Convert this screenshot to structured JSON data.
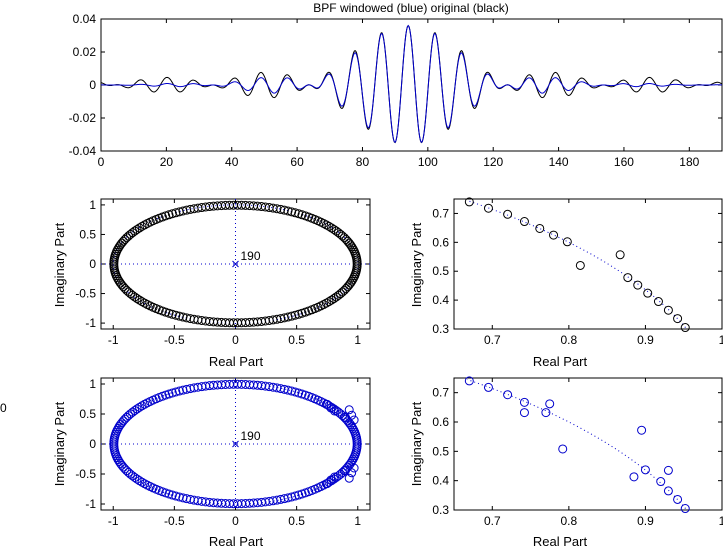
{
  "colors": {
    "original": "#000000",
    "windowed": "#0000cc",
    "axis": "#000000"
  },
  "stray_label": "0",
  "chart_data": [
    {
      "type": "line",
      "id": "impulse",
      "title": "BPF windowed (blue) original (black)",
      "xlim": [
        0,
        190
      ],
      "ylim": [
        -0.04,
        0.04
      ],
      "xticks": [
        0,
        20,
        40,
        60,
        80,
        100,
        120,
        140,
        160,
        180
      ],
      "yticks": [
        -0.04,
        -0.02,
        0,
        0.02,
        0.04
      ],
      "xtick_labels": [
        "0",
        "20",
        "40",
        "60",
        "80",
        "100",
        "120",
        "140",
        "160",
        "180"
      ],
      "ytick_labels": [
        "-0.04",
        "-0.02",
        "0",
        "0.02",
        "0.04"
      ],
      "center": 94,
      "period": 8.2,
      "series": [
        {
          "role": "original",
          "color": "#000000",
          "window": false
        },
        {
          "role": "windowed",
          "color": "#0000cc",
          "window": true
        }
      ]
    },
    {
      "type": "scatter",
      "id": "zeros-original",
      "xlabel": "Real Part",
      "ylabel": "Imaginary Part",
      "xlim": [
        -1.1,
        1.1
      ],
      "ylim": [
        -1.1,
        1.1
      ],
      "xticks": [
        -1,
        -0.5,
        0,
        0.5,
        1
      ],
      "yticks": [
        -1,
        -0.5,
        0,
        0.5,
        1
      ],
      "xtick_labels": [
        "-1",
        "-0.5",
        "0",
        "0.5",
        "1"
      ],
      "ytick_labels": [
        "-1",
        "-0.5",
        "0",
        "0.5",
        "1"
      ],
      "pole_label": "190",
      "color": "#000000",
      "n_zeros": 190,
      "dense_ring": true
    },
    {
      "type": "scatter",
      "id": "zeros-original-zoom",
      "xlabel": "Real Part",
      "ylabel": "Imaginary Part",
      "xlim": [
        0.65,
        1.0
      ],
      "ylim": [
        0.3,
        0.75
      ],
      "xticks": [
        0.7,
        0.8,
        0.9,
        1
      ],
      "yticks": [
        0.3,
        0.4,
        0.5,
        0.6,
        0.7
      ],
      "xtick_labels": [
        "0.7",
        "0.8",
        "0.9",
        "1"
      ],
      "ytick_labels": [
        "0.3",
        "0.4",
        "0.5",
        "0.6",
        "0.7"
      ],
      "color": "#000000",
      "points": [
        [
          0.67,
          0.74
        ],
        [
          0.695,
          0.718
        ],
        [
          0.72,
          0.697
        ],
        [
          0.742,
          0.672
        ],
        [
          0.762,
          0.648
        ],
        [
          0.78,
          0.625
        ],
        [
          0.798,
          0.602
        ],
        [
          0.815,
          0.52
        ],
        [
          0.867,
          0.557
        ],
        [
          0.877,
          0.478
        ],
        [
          0.89,
          0.452
        ],
        [
          0.903,
          0.424
        ],
        [
          0.917,
          0.395
        ],
        [
          0.93,
          0.365
        ],
        [
          0.942,
          0.336
        ],
        [
          0.952,
          0.305
        ]
      ],
      "circle_curve": true
    },
    {
      "type": "scatter",
      "id": "zeros-windowed",
      "xlabel": "Real Part",
      "ylabel": "Imaginary Part",
      "xlim": [
        -1.1,
        1.1
      ],
      "ylim": [
        -1.1,
        1.1
      ],
      "xticks": [
        -1,
        -0.5,
        0,
        0.5,
        1
      ],
      "yticks": [
        -1,
        -0.5,
        0,
        0.5,
        1
      ],
      "xtick_labels": [
        "-1",
        "-0.5",
        "0",
        "0.5",
        "1"
      ],
      "ytick_labels": [
        "-1",
        "-0.5",
        "0",
        "0.5",
        "1"
      ],
      "pole_label": "190",
      "color": "#0000cc",
      "n_zeros": 190,
      "dense_ring": false,
      "extra_points": [
        [
          0.78,
          0.6
        ],
        [
          0.81,
          0.55
        ],
        [
          0.93,
          0.57
        ],
        [
          0.95,
          0.48
        ],
        [
          0.97,
          0.4
        ],
        [
          0.78,
          -0.6
        ],
        [
          0.81,
          -0.55
        ],
        [
          0.93,
          -0.57
        ],
        [
          0.95,
          -0.48
        ],
        [
          0.97,
          -0.4
        ],
        [
          0.9,
          0.44
        ],
        [
          0.9,
          -0.44
        ],
        [
          0.75,
          0.66
        ],
        [
          0.75,
          -0.66
        ]
      ]
    },
    {
      "type": "scatter",
      "id": "zeros-windowed-zoom",
      "xlabel": "Real Part",
      "ylabel": "Imaginary Part",
      "xlim": [
        0.65,
        1.0
      ],
      "ylim": [
        0.3,
        0.75
      ],
      "xticks": [
        0.7,
        0.8,
        0.9,
        1
      ],
      "yticks": [
        0.3,
        0.4,
        0.5,
        0.6,
        0.7
      ],
      "xtick_labels": [
        "0.7",
        "0.8",
        "0.9",
        "1"
      ],
      "ytick_labels": [
        "0.3",
        "0.4",
        "0.5",
        "0.6",
        "0.7"
      ],
      "color": "#0000cc",
      "points": [
        [
          0.67,
          0.74
        ],
        [
          0.695,
          0.718
        ],
        [
          0.72,
          0.693
        ],
        [
          0.742,
          0.667
        ],
        [
          0.742,
          0.632
        ],
        [
          0.77,
          0.632
        ],
        [
          0.775,
          0.662
        ],
        [
          0.792,
          0.508
        ],
        [
          0.895,
          0.572
        ],
        [
          0.885,
          0.413
        ],
        [
          0.9,
          0.437
        ],
        [
          0.92,
          0.397
        ],
        [
          0.93,
          0.435
        ],
        [
          0.93,
          0.365
        ],
        [
          0.942,
          0.336
        ],
        [
          0.952,
          0.305
        ]
      ],
      "circle_curve": true
    }
  ]
}
